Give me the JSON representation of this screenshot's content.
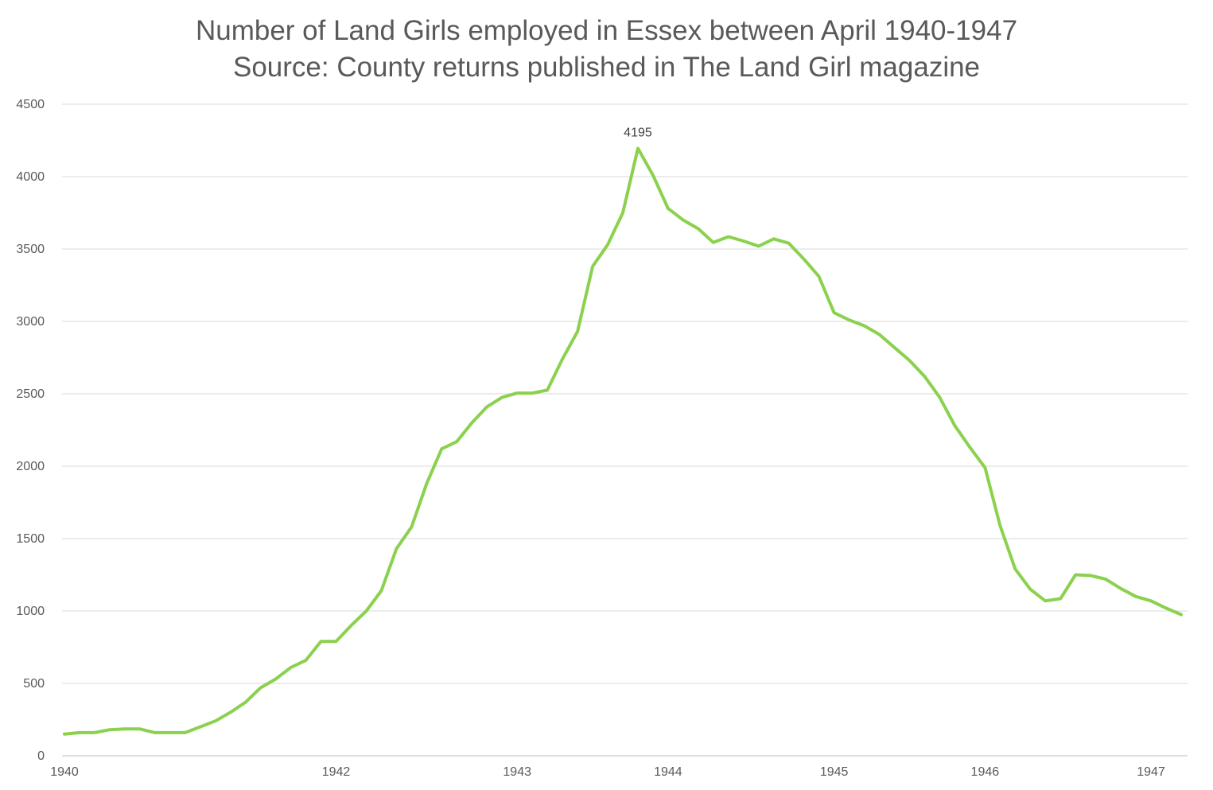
{
  "chart_data": {
    "type": "line",
    "title": "Number of Land Girls employed in Essex between April 1940-1947",
    "subtitle": "Source: County returns published in The Land Girl magazine",
    "xlabel": "",
    "ylabel": "",
    "ylim": [
      0,
      4500
    ],
    "y_ticks": [
      "0",
      "500",
      "1000",
      "1500",
      "2000",
      "2500",
      "3000",
      "3500",
      "4000",
      "4500"
    ],
    "x_ticks": [
      {
        "label": "1940",
        "index": 0
      },
      {
        "label": "1942",
        "index": 18
      },
      {
        "label": "1943",
        "index": 30
      },
      {
        "label": "1944",
        "index": 40
      },
      {
        "label": "1945",
        "index": 51
      },
      {
        "label": "1946",
        "index": 61
      },
      {
        "label": "1947",
        "index": 72
      }
    ],
    "grid": true,
    "legend": "none",
    "series": [
      {
        "values": [
          150,
          160,
          160,
          180,
          185,
          185,
          160,
          160,
          160,
          200,
          240,
          300,
          370,
          470,
          530,
          610,
          660,
          790,
          790,
          900,
          1000,
          1140,
          1430,
          1580,
          1880,
          2120,
          2170,
          2300,
          2410,
          2475,
          2505,
          2505,
          2525,
          2740,
          2930,
          3380,
          3530,
          3750,
          4195,
          4010,
          3780,
          3700,
          3640,
          3545,
          3585,
          3555,
          3520,
          3570,
          3540,
          3430,
          3310,
          3060,
          3010,
          2970,
          2910,
          2820,
          2730,
          2620,
          2475,
          2280,
          2130,
          1990,
          1590,
          1290,
          1150,
          1070,
          1085,
          1250,
          1245,
          1220,
          1155,
          1100,
          1070,
          1020,
          975
        ],
        "color": "#8BD14E"
      }
    ],
    "data_labels": [
      {
        "index": 38,
        "text": "4195"
      }
    ]
  }
}
